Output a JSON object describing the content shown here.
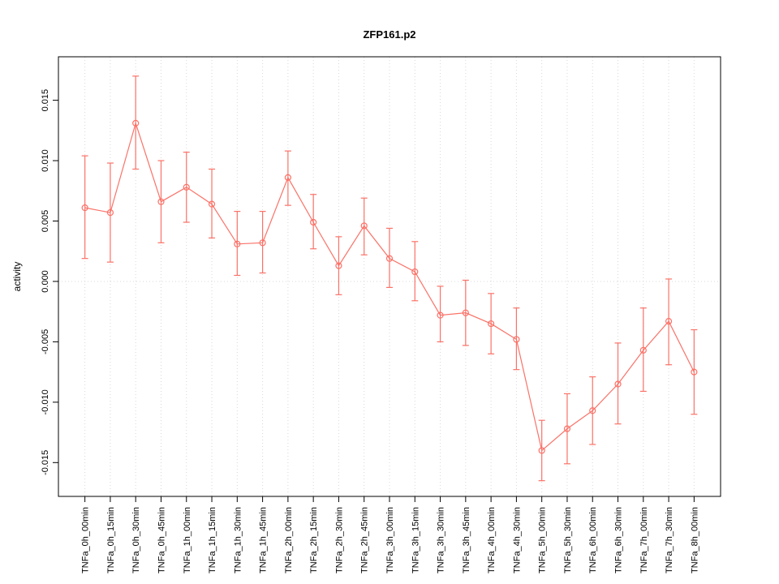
{
  "chart_data": {
    "type": "line",
    "title": "ZFP161.p2",
    "ylabel": "activity",
    "xlabel": "",
    "legend": "none",
    "grid": "dotted vertical line per category, dotted horizontal line at y=0",
    "ylim": [
      -0.0178,
      0.0186
    ],
    "yticks": [
      -0.015,
      -0.01,
      -0.005,
      0.0,
      0.005,
      0.01,
      0.015
    ],
    "series_color": "#fa7268",
    "grid_color": "#d8d8d8",
    "axis_color": "#000000",
    "categories": [
      "TNFa_0h_00min",
      "TNFa_0h_15min",
      "TNFa_0h_30min",
      "TNFa_0h_45min",
      "TNFa_1h_00min",
      "TNFa_1h_15min",
      "TNFa_1h_30min",
      "TNFa_1h_45min",
      "TNFa_2h_00min",
      "TNFa_2h_15min",
      "TNFa_2h_30min",
      "TNFa_2h_45min",
      "TNFa_3h_00min",
      "TNFa_3h_15min",
      "TNFa_3h_30min",
      "TNFa_3h_45min",
      "TNFa_4h_00min",
      "TNFa_4h_30min",
      "TNFa_5h_00min",
      "TNFa_5h_30min",
      "TNFa_6h_00min",
      "TNFa_6h_30min",
      "TNFa_7h_00min",
      "TNFa_7h_30min",
      "TNFa_8h_00min"
    ],
    "values": [
      0.0061,
      0.0057,
      0.0131,
      0.0066,
      0.0078,
      0.0064,
      0.0031,
      0.0032,
      0.0086,
      0.0049,
      0.0013,
      0.0046,
      0.0019,
      0.0008,
      -0.0028,
      -0.0026,
      -0.0035,
      -0.0048,
      -0.014,
      -0.0122,
      -0.0107,
      -0.0085,
      -0.0057,
      -0.0033,
      -0.0075
    ],
    "error_low": [
      0.0019,
      0.0016,
      0.0093,
      0.0032,
      0.0049,
      0.0036,
      0.0005,
      0.0007,
      0.0063,
      0.0027,
      -0.0011,
      0.0022,
      -0.0005,
      -0.0016,
      -0.005,
      -0.0053,
      -0.006,
      -0.0073,
      -0.0165,
      -0.0151,
      -0.0135,
      -0.0118,
      -0.0091,
      -0.0069,
      -0.011
    ],
    "error_high": [
      0.0104,
      0.0098,
      0.017,
      0.01,
      0.0107,
      0.0093,
      0.0058,
      0.0058,
      0.0108,
      0.0072,
      0.0037,
      0.0069,
      0.0044,
      0.0033,
      -0.0004,
      0.0001,
      -0.001,
      -0.0022,
      -0.0115,
      -0.0093,
      -0.0079,
      -0.0051,
      -0.0022,
      0.0002,
      -0.004
    ]
  }
}
